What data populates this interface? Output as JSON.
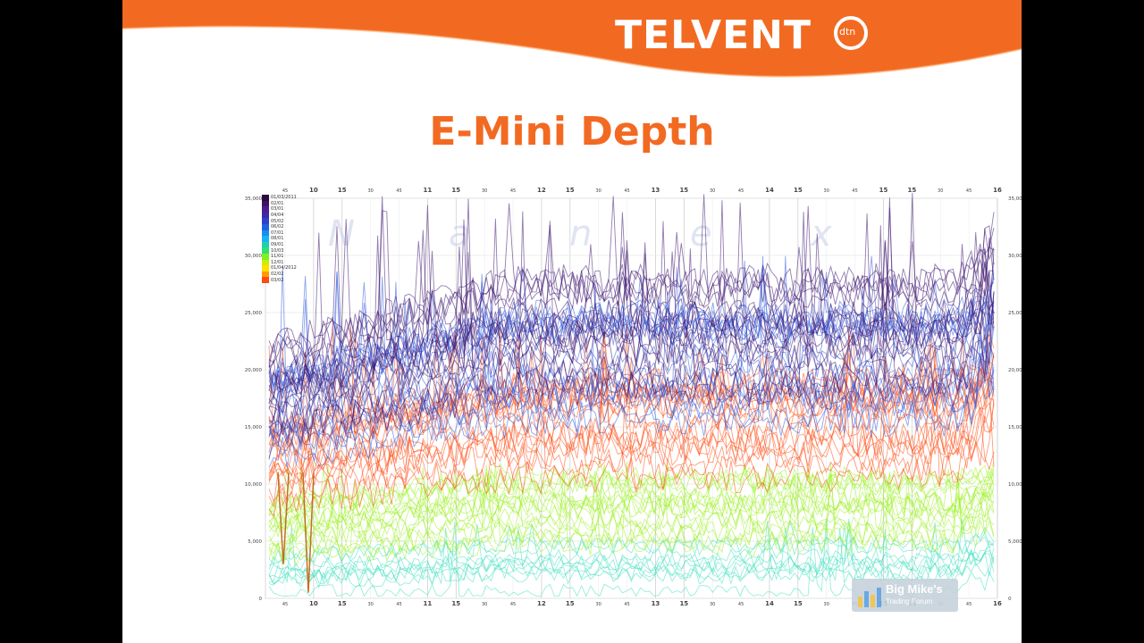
{
  "brand": {
    "logo_text": "TELVENT",
    "logo_sub": "dtn",
    "accent_color": "#f26a21"
  },
  "slide_title": "E-Mini Depth",
  "watermark": "Nanex",
  "badge": {
    "title": "Big Mike's",
    "subtitle": "Trading Forum"
  },
  "chart_data": {
    "type": "line",
    "title": "",
    "xlabel": "",
    "ylabel": "",
    "x_ticks": [
      "45",
      "10",
      "15",
      "30",
      "45",
      "11",
      "15",
      "30",
      "45",
      "12",
      "15",
      "30",
      "45",
      "13",
      "15",
      "30",
      "45",
      "14",
      "15",
      "30",
      "45",
      "15",
      "15",
      "30",
      "45",
      "16"
    ],
    "x_major_ticks": [
      "10",
      "11",
      "12",
      "13",
      "14",
      "15",
      "16"
    ],
    "y_ticks": [
      "0",
      "5,000",
      "10,000",
      "15,000",
      "20,000",
      "25,000",
      "30,000",
      "35,000"
    ],
    "ylim": [
      0,
      35000
    ],
    "grid": true,
    "legend_position": "top-left",
    "series": [
      {
        "name": "01/03/2011",
        "color": "#2b0a3d"
      },
      {
        "name": "02/01",
        "color": "#3d1460"
      },
      {
        "name": "03/01",
        "color": "#4a1e8c"
      },
      {
        "name": "04/04",
        "color": "#3a2aa8"
      },
      {
        "name": "05/02",
        "color": "#2e40c8"
      },
      {
        "name": "06/02",
        "color": "#2060e0"
      },
      {
        "name": "07/01",
        "color": "#1c8cf0"
      },
      {
        "name": "08/01",
        "color": "#18b4f0"
      },
      {
        "name": "09/01",
        "color": "#20d0b0"
      },
      {
        "name": "10/03",
        "color": "#30e070"
      },
      {
        "name": "11/01",
        "color": "#7ff020"
      },
      {
        "name": "12/01",
        "color": "#c8f000"
      },
      {
        "name": "01/04/2012",
        "color": "#ffe000"
      },
      {
        "name": "02/02",
        "color": "#ff9a00"
      },
      {
        "name": "03/02",
        "color": "#ff4a10"
      }
    ],
    "bands": [
      {
        "label": "dark purple band",
        "low": 17000,
        "high": 27000,
        "peak": 35500,
        "color": "#3a1270"
      },
      {
        "label": "blue band",
        "low": 15000,
        "high": 24000,
        "peak": 30000,
        "color": "#2e5ae0"
      },
      {
        "label": "orange-red band",
        "low": 10000,
        "high": 19000,
        "peak": 24000,
        "color": "#ff4a10"
      },
      {
        "label": "yellow-green band",
        "low": 4500,
        "high": 10500,
        "peak": 12000,
        "color": "#9af020"
      },
      {
        "label": "cyan band",
        "low": 500,
        "high": 5000,
        "peak": 7000,
        "color": "#40e0c0"
      }
    ]
  }
}
